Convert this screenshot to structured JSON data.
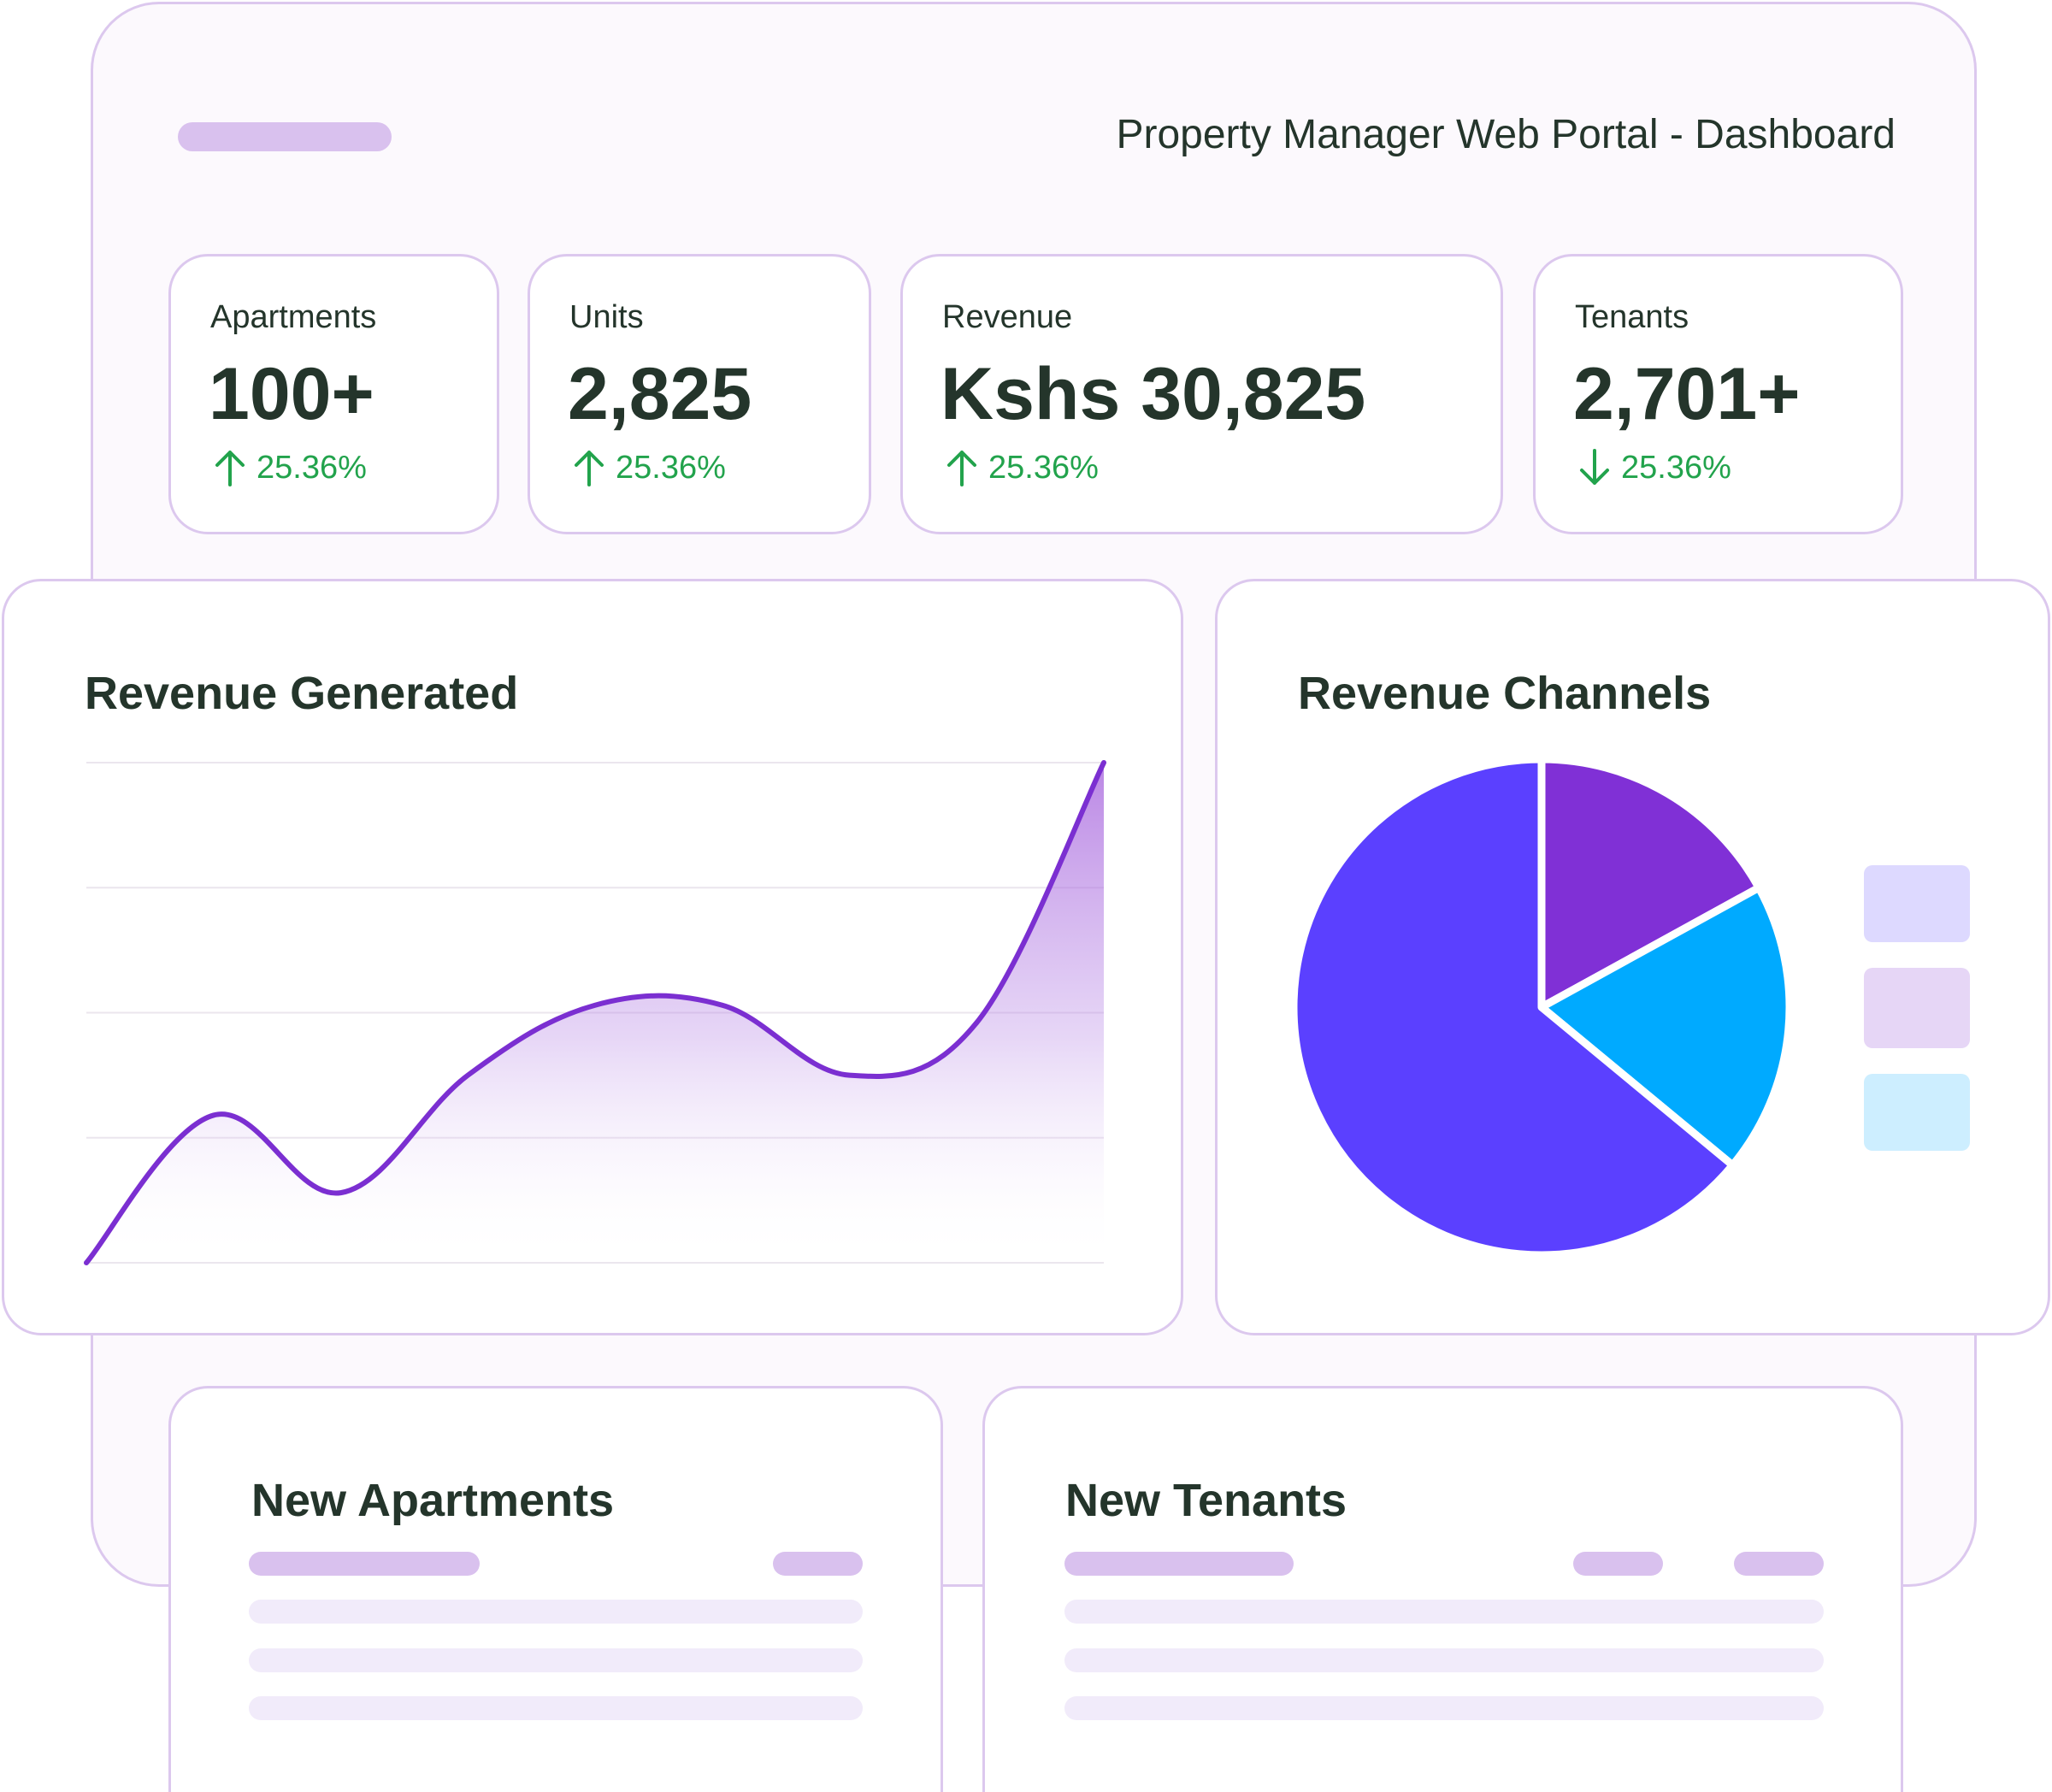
{
  "header": {
    "title": "Property Manager Web Portal - Dashboard"
  },
  "stats": [
    {
      "label": "Apartments",
      "value": "100+",
      "change": "25.36%",
      "direction": "up"
    },
    {
      "label": "Units",
      "value": "2,825",
      "change": "25.36%",
      "direction": "up"
    },
    {
      "label": "Revenue",
      "value": "Kshs 30,825",
      "change": "25.36%",
      "direction": "up"
    },
    {
      "label": "Tenants",
      "value": "2,701+",
      "change": "25.36%",
      "direction": "down"
    }
  ],
  "panels": {
    "revenue_generated": {
      "title": "Revenue Generated"
    },
    "revenue_channels": {
      "title": "Revenue Channels"
    },
    "new_apartments": {
      "title": "New Apartments"
    },
    "new_tenants": {
      "title": "New Tenants"
    }
  },
  "colors": {
    "accent": "#7b2fd1",
    "up": "#22a34c",
    "pie_main": "#5b40ff",
    "pie_purple": "#8030d6",
    "pie_blue": "#00aaff",
    "border": "#dcc8ee"
  },
  "chart_data": [
    {
      "type": "area",
      "title": "Revenue Generated",
      "x": [
        0,
        1,
        2,
        3,
        4,
        5,
        6,
        7,
        8
      ],
      "values": [
        0,
        59,
        28,
        75,
        103,
        103,
        75,
        96,
        200
      ],
      "ylim": [
        0,
        200
      ],
      "grid": true,
      "gridlines": 5
    },
    {
      "type": "pie",
      "title": "Revenue Channels",
      "slices": [
        {
          "value": 17,
          "color": "#8030d6"
        },
        {
          "value": 19,
          "color": "#00aaff"
        },
        {
          "value": 64,
          "color": "#5b40ff"
        }
      ],
      "legend_colors": [
        "#ddd9ff",
        "#e6d6f6",
        "#cdeeff"
      ],
      "legend": "right"
    }
  ]
}
